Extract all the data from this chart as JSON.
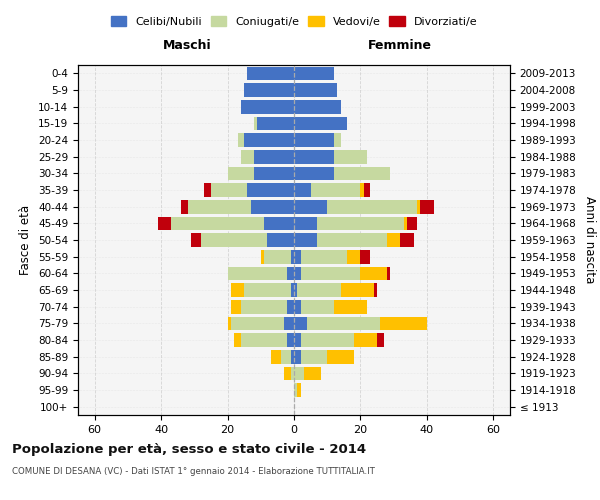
{
  "age_groups": [
    "100+",
    "95-99",
    "90-94",
    "85-89",
    "80-84",
    "75-79",
    "70-74",
    "65-69",
    "60-64",
    "55-59",
    "50-54",
    "45-49",
    "40-44",
    "35-39",
    "30-34",
    "25-29",
    "20-24",
    "15-19",
    "10-14",
    "5-9",
    "0-4"
  ],
  "birth_years": [
    "≤ 1913",
    "1914-1918",
    "1919-1923",
    "1924-1928",
    "1929-1933",
    "1934-1938",
    "1939-1943",
    "1944-1948",
    "1949-1953",
    "1954-1958",
    "1959-1963",
    "1964-1968",
    "1969-1973",
    "1974-1978",
    "1979-1983",
    "1984-1988",
    "1989-1993",
    "1994-1998",
    "1999-2003",
    "2004-2008",
    "2009-2013"
  ],
  "maschi_celibi": [
    0,
    0,
    0,
    1,
    2,
    3,
    2,
    1,
    2,
    1,
    8,
    9,
    13,
    14,
    12,
    12,
    15,
    11,
    16,
    15,
    14
  ],
  "maschi_coniugati": [
    0,
    0,
    1,
    3,
    14,
    16,
    14,
    14,
    18,
    8,
    20,
    28,
    19,
    11,
    8,
    4,
    2,
    1,
    0,
    0,
    0
  ],
  "maschi_vedovi": [
    0,
    0,
    2,
    3,
    2,
    1,
    3,
    4,
    0,
    1,
    0,
    0,
    0,
    0,
    0,
    0,
    0,
    0,
    0,
    0,
    0
  ],
  "maschi_divorziati": [
    0,
    0,
    0,
    0,
    0,
    0,
    0,
    0,
    0,
    0,
    3,
    4,
    2,
    2,
    0,
    0,
    0,
    0,
    0,
    0,
    0
  ],
  "femmine_celibi": [
    0,
    0,
    0,
    2,
    2,
    4,
    2,
    1,
    2,
    2,
    7,
    7,
    10,
    5,
    12,
    12,
    12,
    16,
    14,
    13,
    12
  ],
  "femmine_coniugati": [
    0,
    1,
    3,
    8,
    16,
    22,
    10,
    13,
    18,
    14,
    21,
    26,
    27,
    15,
    17,
    10,
    2,
    0,
    0,
    0,
    0
  ],
  "femmine_vedovi": [
    0,
    1,
    5,
    8,
    7,
    14,
    10,
    10,
    8,
    4,
    4,
    1,
    1,
    1,
    0,
    0,
    0,
    0,
    0,
    0,
    0
  ],
  "femmine_divorziati": [
    0,
    0,
    0,
    0,
    2,
    0,
    0,
    1,
    1,
    3,
    4,
    3,
    4,
    2,
    0,
    0,
    0,
    0,
    0,
    0,
    0
  ],
  "color_celibi": "#4472c4",
  "color_coniugati": "#c6d9a0",
  "color_vedovi": "#ffc000",
  "color_divorziati": "#c0000c",
  "title": "Popolazione per età, sesso e stato civile - 2014",
  "subtitle": "COMUNE DI DESANA (VC) - Dati ISTAT 1° gennaio 2014 - Elaborazione TUTTITALIA.IT",
  "label_maschi": "Maschi",
  "label_femmine": "Femmine",
  "ylabel_left": "Fasce di età",
  "ylabel_right": "Anni di nascita",
  "xlim": 65,
  "bg_color": "#f5f5f5",
  "grid_color": "#cccccc",
  "legend_labels": [
    "Celibi/Nubili",
    "Coniugati/e",
    "Vedovi/e",
    "Divorziati/e"
  ]
}
